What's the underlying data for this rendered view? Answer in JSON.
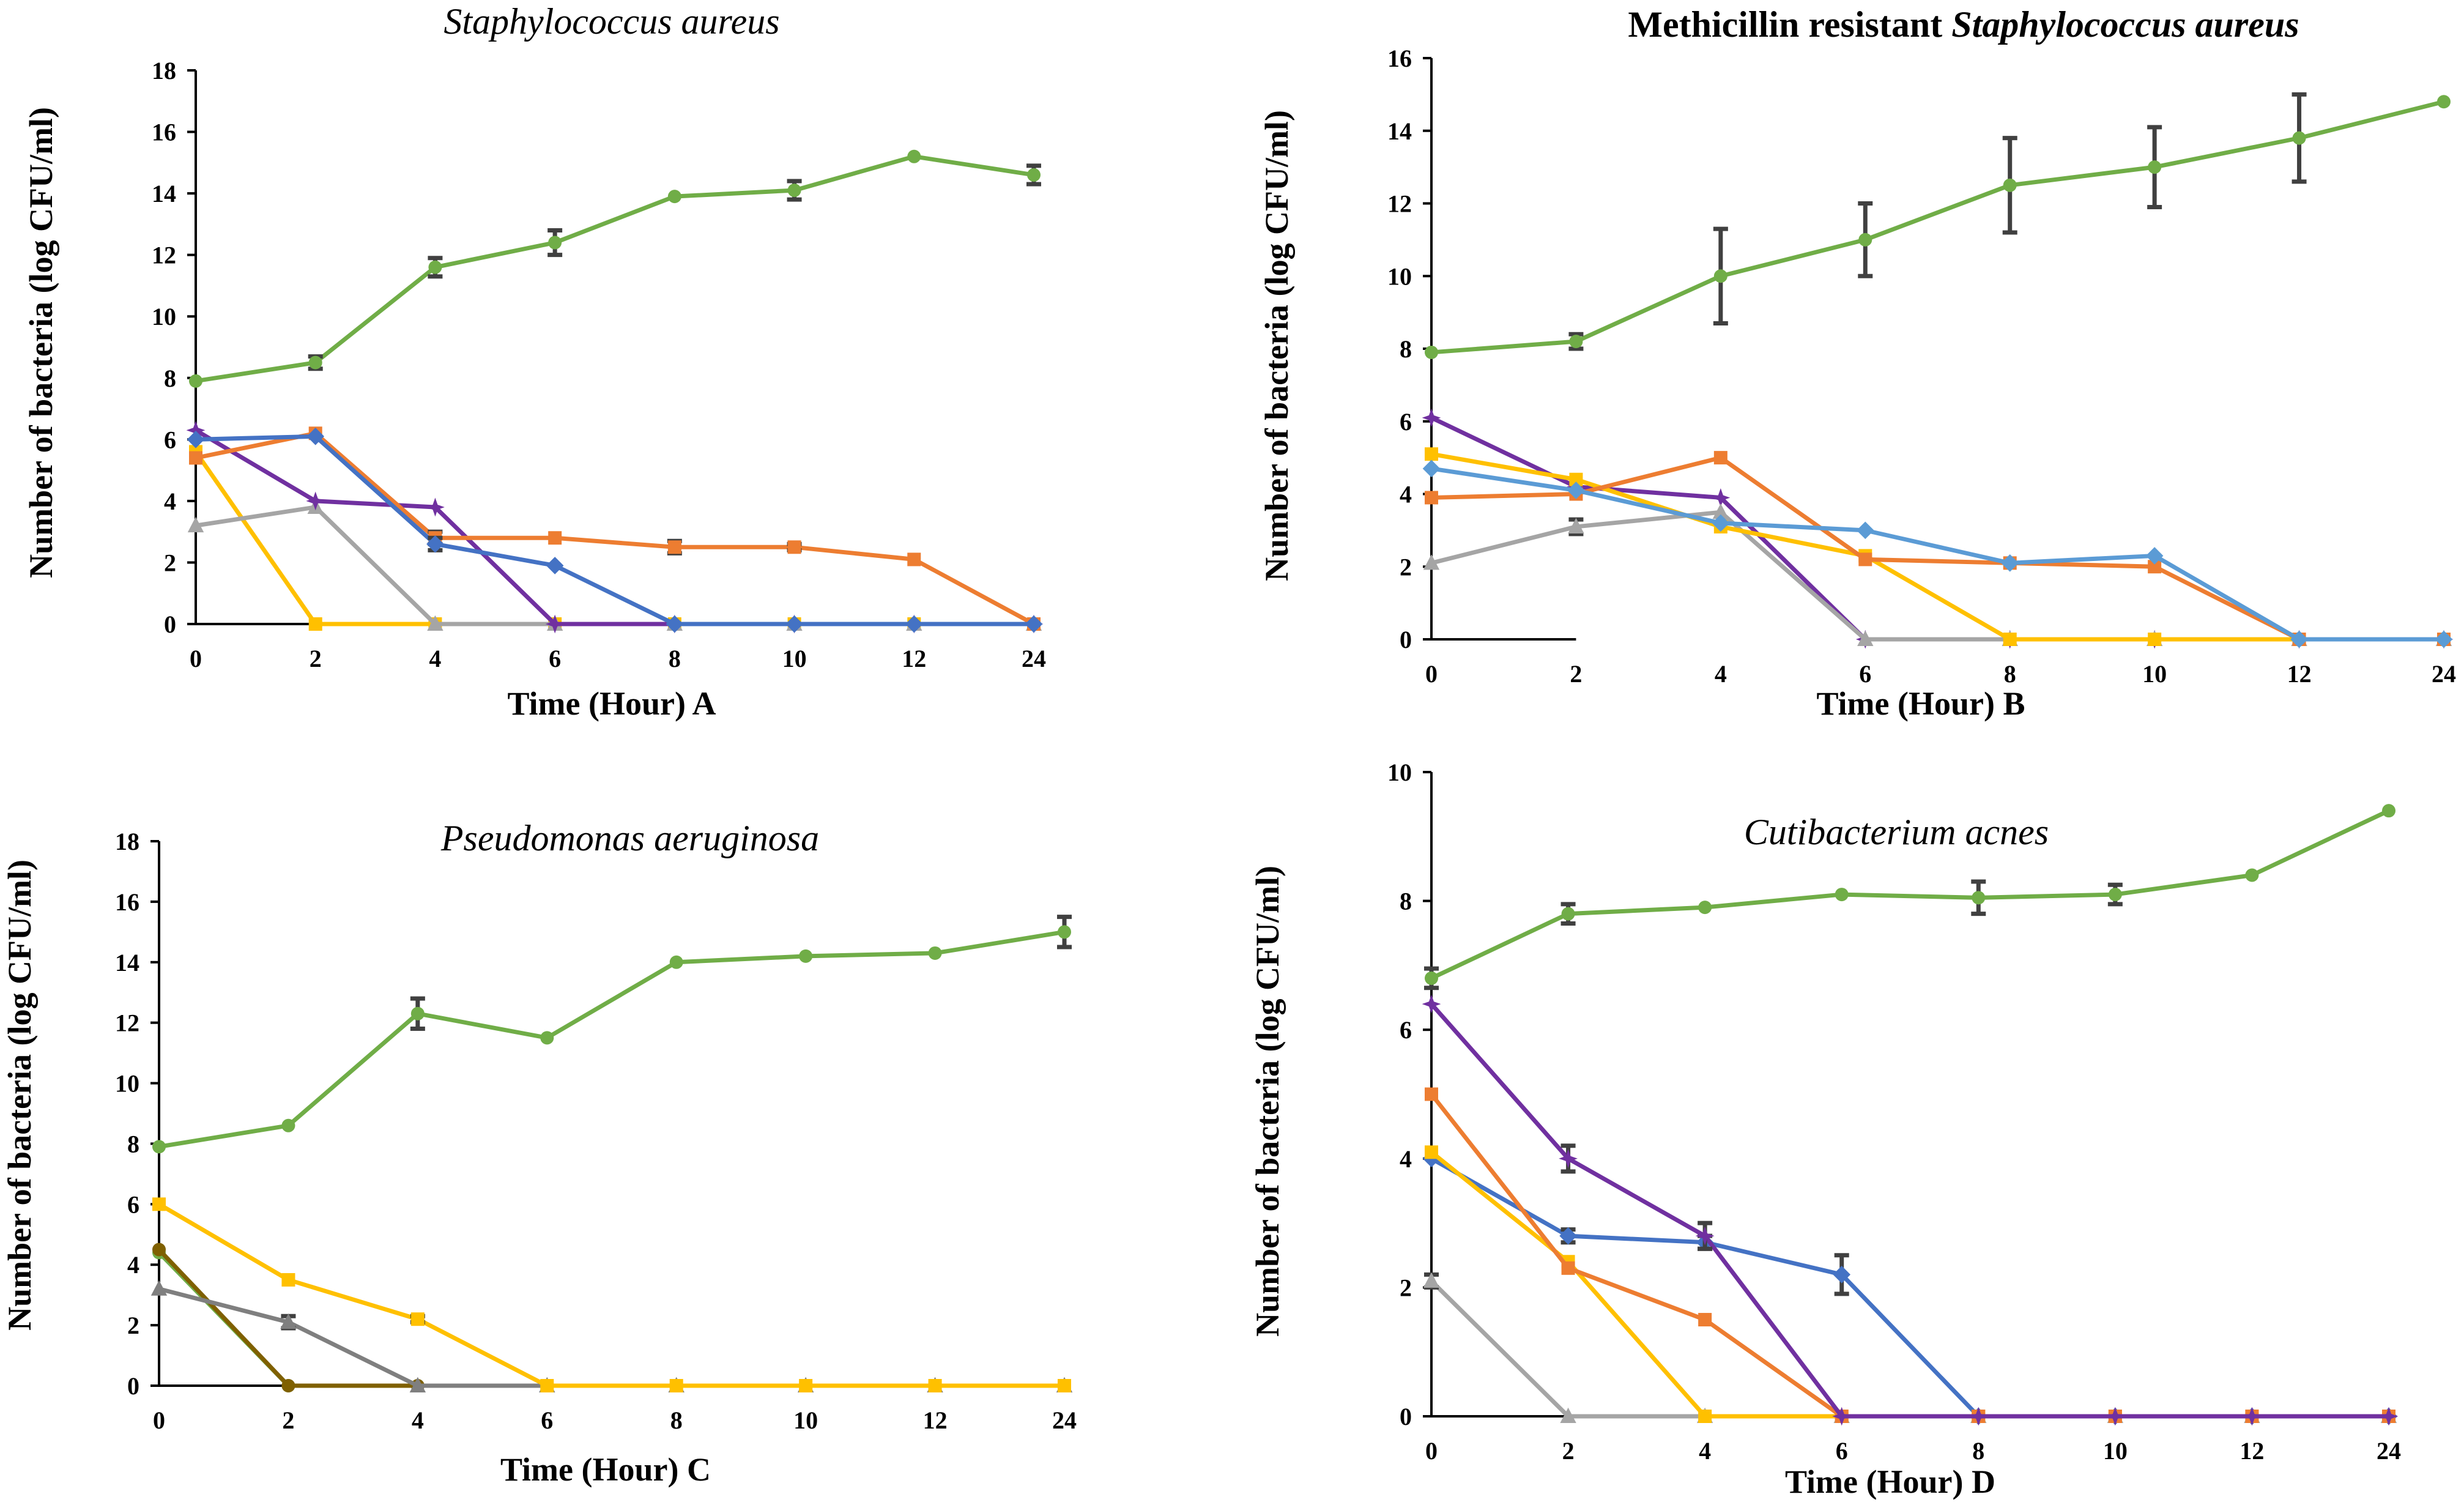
{
  "colors": {
    "green": "#70AD47",
    "blue": "#4472C4",
    "orange": "#ED7D31",
    "yellow": "#FFC000",
    "gray": "#A5A5A5",
    "purple": "#7030A0",
    "lightblue": "#5B9BD5",
    "darkgray": "#7F7F7F",
    "olive": "#7F6000",
    "errorbar": "#404040"
  },
  "chart_data": [
    {
      "type": "line",
      "title": "Staphylococcus aureus",
      "xlabel": "Time (Hour) A",
      "ylabel": "Number of bacteria (log CFU/ml)",
      "ylim": [
        0,
        18
      ],
      "yticks": [
        "0",
        "2",
        "4",
        "6",
        "8",
        "10",
        "12",
        "14",
        "16",
        "18"
      ],
      "categories": [
        "0",
        "2",
        "4",
        "6",
        "8",
        "10",
        "12",
        "24"
      ],
      "series": [
        {
          "color": "green",
          "marker": "circle",
          "values": [
            7.9,
            8.5,
            11.6,
            12.4,
            13.9,
            14.1,
            15.2,
            14.6
          ],
          "errors": [
            0,
            0.2,
            0.3,
            0.4,
            0,
            0.3,
            0,
            0.3
          ]
        },
        {
          "color": "blue",
          "marker": "diamond",
          "values": [
            6.0,
            6.1,
            2.6,
            1.9,
            0,
            0,
            0,
            0
          ],
          "errors": [
            0,
            0,
            0.2,
            0,
            0,
            0,
            0,
            0
          ]
        },
        {
          "color": "orange",
          "marker": "square",
          "values": [
            5.4,
            6.2,
            2.8,
            2.8,
            2.5,
            2.5,
            2.1,
            0
          ],
          "errors": [
            0,
            0,
            0.2,
            0,
            0.2,
            0.1,
            0,
            0
          ]
        },
        {
          "color": "purple",
          "marker": "star",
          "values": [
            6.3,
            4.0,
            3.8,
            0,
            0,
            0,
            0,
            0
          ],
          "errors": [
            0,
            0,
            0,
            0,
            0,
            0,
            0,
            0
          ]
        },
        {
          "color": "gray",
          "marker": "triangle",
          "values": [
            3.2,
            3.8,
            0,
            0,
            0,
            0,
            0,
            0
          ],
          "errors": [
            0,
            0,
            0,
            0,
            0,
            0,
            0,
            0
          ]
        },
        {
          "color": "yellow",
          "marker": "square",
          "values": [
            5.6,
            0,
            0,
            0,
            0,
            0,
            0,
            0
          ],
          "errors": [
            0,
            0,
            0,
            0,
            0,
            0,
            0,
            0
          ]
        }
      ]
    },
    {
      "type": "line",
      "title_plain": "Methicillin resistant ",
      "title_italic": "Staphylococcus aureus",
      "xlabel": "Time (Hour) B",
      "ylabel": "Number of bacteria (log CFU/ml)",
      "ylim": [
        0,
        16
      ],
      "yticks": [
        "0",
        "2",
        "4",
        "6",
        "8",
        "10",
        "12",
        "14",
        "16"
      ],
      "categories": [
        "0",
        "2",
        "4",
        "6",
        "8",
        "10",
        "12",
        "24"
      ],
      "series": [
        {
          "color": "green",
          "marker": "circle",
          "values": [
            7.9,
            8.2,
            10.0,
            11.0,
            12.5,
            13.0,
            13.8,
            14.8
          ],
          "errors": [
            0,
            0.2,
            1.3,
            1.0,
            1.3,
            1.1,
            1.2,
            0
          ]
        },
        {
          "color": "lightblue",
          "marker": "diamond",
          "values": [
            4.7,
            4.1,
            3.2,
            3.0,
            2.1,
            2.3,
            0,
            0
          ],
          "errors": [
            0,
            0,
            0,
            0,
            0,
            0,
            0,
            0
          ]
        },
        {
          "color": "orange",
          "marker": "square",
          "values": [
            3.9,
            4.0,
            5.0,
            2.2,
            2.1,
            2.0,
            0,
            0
          ],
          "errors": [
            0,
            0,
            0,
            0,
            0,
            0,
            0,
            0
          ]
        },
        {
          "color": "yellow",
          "marker": "square",
          "values": [
            5.1,
            4.4,
            3.1,
            2.3,
            0,
            0,
            0,
            0
          ],
          "errors": [
            0,
            0,
            0,
            0,
            0,
            0,
            0,
            0
          ]
        },
        {
          "color": "gray",
          "marker": "triangle",
          "values": [
            2.1,
            3.1,
            3.5,
            0,
            0,
            0,
            0,
            0
          ],
          "errors": [
            0,
            0.2,
            0,
            0,
            0,
            0,
            0,
            0
          ]
        },
        {
          "color": "purple",
          "marker": "star",
          "values": [
            6.1,
            4.2,
            3.9,
            0,
            0,
            0,
            0,
            0
          ],
          "errors": [
            0,
            0,
            0,
            0,
            0,
            0,
            0,
            0
          ]
        }
      ]
    },
    {
      "type": "line",
      "title": "Pseudomonas aeruginosa",
      "xlabel": "Time (Hour) C",
      "ylabel": "Number of bacteria (log CFU/ml)",
      "ylim": [
        0,
        18
      ],
      "yticks": [
        "0",
        "2",
        "4",
        "6",
        "8",
        "10",
        "12",
        "14",
        "16",
        "18"
      ],
      "categories": [
        "0",
        "2",
        "4",
        "6",
        "8",
        "10",
        "12",
        "24"
      ],
      "series": [
        {
          "color": "green",
          "marker": "circle",
          "values": [
            7.9,
            8.6,
            12.3,
            11.5,
            14.0,
            14.2,
            14.3,
            15.0
          ],
          "errors": [
            0,
            0,
            0.5,
            0,
            0,
            0,
            0,
            0.5
          ]
        },
        {
          "color": "yellow",
          "marker": "square",
          "values": [
            6.0,
            3.5,
            2.2,
            0,
            0,
            0,
            0,
            0
          ],
          "errors": [
            0,
            0,
            0.1,
            0,
            0,
            0,
            0,
            0
          ]
        },
        {
          "color": "darkgray",
          "marker": "triangle",
          "values": [
            3.2,
            2.1,
            0,
            0,
            0,
            0,
            0,
            0
          ],
          "errors": [
            0,
            0.2,
            0,
            0,
            0,
            0,
            0,
            0
          ]
        },
        {
          "color": "olive",
          "marker": "circle",
          "values": [
            4.5,
            0,
            0,
            0,
            0,
            0,
            0,
            0
          ],
          "errors": [
            0,
            0,
            0,
            0,
            0,
            0,
            0,
            0
          ]
        },
        {
          "color": "green",
          "marker": "circle",
          "values": [
            4.4,
            0,
            0,
            0,
            0,
            0,
            0,
            0
          ],
          "errors": [
            0,
            0,
            0,
            0,
            0,
            0,
            0,
            0
          ]
        }
      ]
    },
    {
      "type": "line",
      "title": "Cutibacterium acnes",
      "xlabel": "Time (Hour) D",
      "ylabel": "Number of bacteria (log CFU/ml)",
      "ylim": [
        0,
        10
      ],
      "yticks": [
        "0",
        "2",
        "4",
        "6",
        "8",
        "10"
      ],
      "categories": [
        "0",
        "2",
        "4",
        "6",
        "8",
        "10",
        "12",
        "24"
      ],
      "series": [
        {
          "color": "green",
          "marker": "circle",
          "values": [
            6.8,
            7.8,
            7.9,
            8.1,
            8.05,
            8.1,
            8.4,
            9.4
          ],
          "errors": [
            0.15,
            0.15,
            0,
            0,
            0.25,
            0.15,
            0,
            0
          ]
        },
        {
          "color": "purple",
          "marker": "star",
          "values": [
            6.4,
            4.0,
            2.8,
            0,
            0,
            0,
            0,
            0
          ],
          "errors": [
            0,
            0.2,
            0.2,
            0,
            0,
            0,
            0,
            0
          ]
        },
        {
          "color": "orange",
          "marker": "square",
          "values": [
            5.0,
            2.3,
            1.5,
            0,
            0,
            0,
            0,
            0
          ],
          "errors": [
            0,
            0,
            0,
            0,
            0,
            0,
            0,
            0
          ]
        },
        {
          "color": "yellow",
          "marker": "square",
          "values": [
            4.1,
            2.4,
            0,
            0,
            0,
            0,
            0,
            0
          ],
          "errors": [
            0,
            0,
            0,
            0,
            0,
            0,
            0,
            0
          ]
        },
        {
          "color": "blue",
          "marker": "diamond",
          "values": [
            4.0,
            2.8,
            2.7,
            2.2,
            0,
            0,
            0,
            0
          ],
          "errors": [
            0,
            0.1,
            0.1,
            0.3,
            0,
            0,
            0,
            0
          ]
        },
        {
          "color": "gray",
          "marker": "triangle",
          "values": [
            2.1,
            0,
            0,
            0,
            0,
            0,
            0,
            0
          ],
          "errors": [
            0.1,
            0,
            0,
            0,
            0,
            0,
            0,
            0
          ]
        }
      ]
    }
  ]
}
